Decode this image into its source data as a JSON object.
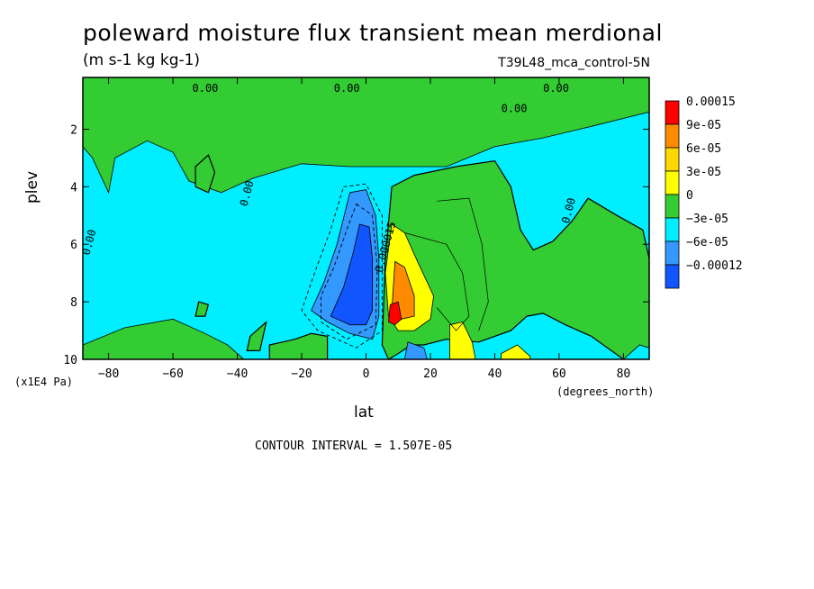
{
  "chart_data": {
    "type": "contour",
    "title": "poleward moisture flux transient mean merdional",
    "units": "(m s-1 kg kg-1)",
    "run_label": "T39L48_mca_control-5N",
    "xlabel": "lat",
    "ylabel": "plev",
    "x_unit_note": "(degrees_north)",
    "y_unit_note": "(x1E4 Pa)",
    "contour_interval_text": "CONTOUR INTERVAL = 1.507E-05",
    "xlim": [
      -88,
      88
    ],
    "ylim": [
      10,
      0.2
    ],
    "x_ticks": [
      -80,
      -60,
      -40,
      -20,
      0,
      20,
      40,
      60,
      80
    ],
    "x_tick_labels": [
      "−80",
      "−60",
      "−40",
      "−20",
      "0",
      "20",
      "40",
      "60",
      "80"
    ],
    "y_ticks": [
      2,
      4,
      6,
      8,
      10
    ],
    "y_tick_labels": [
      "2",
      "4",
      "6",
      "8",
      "10"
    ],
    "legend": [
      {
        "label": "0.00015",
        "color": "#ff0000"
      },
      {
        "label": "9e-05",
        "color": "#ff8c00"
      },
      {
        "label": "6e-05",
        "color": "#ffd700"
      },
      {
        "label": "3e-05",
        "color": "#ffff00"
      },
      {
        "label": "0",
        "color": "#33cc33"
      },
      {
        "label": "−3e-05",
        "color": "#00eeff"
      },
      {
        "label": "−6e-05",
        "color": "#3399ff"
      },
      {
        "label": "−0.00012",
        "color": "#1155ff"
      }
    ],
    "contour_labels": [
      {
        "text": "0.00",
        "x": -54,
        "y": 0.7
      },
      {
        "text": "0.00",
        "x": -10,
        "y": 0.7
      },
      {
        "text": "0.00",
        "x": 55,
        "y": 0.7
      },
      {
        "text": "0.00",
        "x": 42,
        "y": 1.4
      },
      {
        "text": "0.00",
        "x": -37,
        "y": 4.7
      },
      {
        "text": "0.00",
        "x": -86,
        "y": 6.4
      },
      {
        "text": "0.00",
        "x": 63,
        "y": 5.3
      },
      {
        "text": "0.000015",
        "x": 5,
        "y": 7.0
      }
    ],
    "regions": [
      {
        "level": "green",
        "color": "#33cc33",
        "description": "positive flux 0 to 3e-05 covering upper levels and northern hemisphere"
      },
      {
        "level": "cyan",
        "color": "#00eeff",
        "description": "negative flux 0 to -3e-05"
      },
      {
        "level": "blue",
        "color": "#3399ff",
        "description": "negative flux -3e-05 to -6e-05 near equator"
      },
      {
        "level": "darkblue",
        "color": "#1155ff",
        "description": "strong negative flux near 0 lat, 6-9 plev"
      },
      {
        "level": "yellow",
        "color": "#ffff00",
        "description": "positive 3e-05 to 6e-05 near 10N"
      },
      {
        "level": "orange",
        "color": "#ff8c00",
        "description": "positive 6e-05 to 9e-05 near 10N"
      },
      {
        "level": "red",
        "color": "#ff0000",
        "description": "maximum near 10N, 8.3 plev"
      }
    ]
  }
}
